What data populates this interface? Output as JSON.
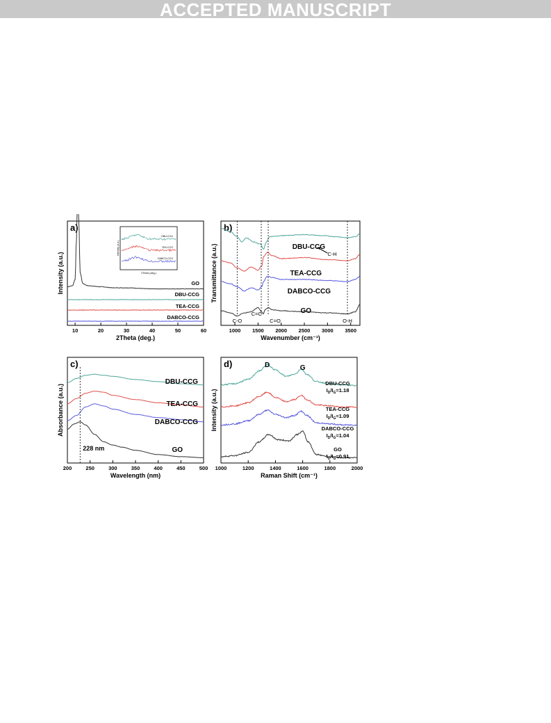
{
  "header": {
    "banner": "ACCEPTED MANUSCRIPT"
  },
  "colors": {
    "dbu": "#4fa89c",
    "tea": "#e0504a",
    "dabco": "#5a5ae0",
    "go": "#333333",
    "banner_bg": "#c9c9c9"
  },
  "chart_data": [
    {
      "type": "line",
      "panel_label": "a)",
      "xlabel": "2Theta (deg.)",
      "ylabel": "Intensity (a.u.)",
      "xlim": [
        7,
        60
      ],
      "xticks": [
        10,
        20,
        30,
        40,
        50,
        60
      ],
      "series": [
        {
          "name": "GO",
          "label": "GO",
          "x": [
            7,
            9,
            10,
            10.5,
            11,
            11.4,
            12,
            13,
            15,
            20,
            25,
            30,
            40,
            50,
            60
          ],
          "values": [
            0.05,
            0.06,
            0.12,
            0.5,
            0.97,
            0.7,
            0.18,
            0.08,
            0.06,
            0.05,
            0.04,
            0.04,
            0.03,
            0.03,
            0.03
          ]
        },
        {
          "name": "DBU-CCG",
          "label": "DBU-CCG",
          "x": [
            7,
            60
          ],
          "values": [
            0.02,
            0.02
          ]
        },
        {
          "name": "TEA-CCG",
          "label": "TEA-CCG",
          "x": [
            7,
            60
          ],
          "values": [
            0.02,
            0.02
          ]
        },
        {
          "name": "DABCO-CCG",
          "label": "DABCO-CCG",
          "x": [
            7,
            60
          ],
          "values": [
            0.02,
            0.02
          ]
        }
      ],
      "inset": {
        "xlabel": "2Theta (deg.)",
        "ylabel": "Intensity (a.u.)",
        "labels": [
          "DBU-CCG",
          "TEA-CCG",
          "DABCO-CCG"
        ]
      }
    },
    {
      "type": "line",
      "panel_label": "b)",
      "xlabel": "Wavenumber (cm⁻¹)",
      "ylabel": "Transmittance (a.u.)",
      "xlim": [
        700,
        3700
      ],
      "xticks": [
        1000,
        1500,
        2000,
        2500,
        3000,
        3500
      ],
      "series": [
        {
          "name": "DBU-CCG",
          "label": "DBU-CCG",
          "x": [
            700,
            900,
            1050,
            1150,
            1250,
            1400,
            1550,
            1620,
            1680,
            1750,
            2000,
            2500,
            2900,
            3200,
            3430,
            3600,
            3700
          ],
          "values": [
            0.93,
            0.9,
            0.85,
            0.8,
            0.84,
            0.8,
            0.78,
            0.73,
            0.8,
            0.85,
            0.86,
            0.87,
            0.86,
            0.85,
            0.84,
            0.85,
            0.88
          ]
        },
        {
          "name": "TEA-CCG",
          "label": "TEA-CCG",
          "x": [
            700,
            900,
            1050,
            1200,
            1350,
            1500,
            1580,
            1620,
            1700,
            1800,
            2000,
            2500,
            3000,
            3430,
            3600,
            3700
          ],
          "values": [
            0.62,
            0.6,
            0.55,
            0.52,
            0.56,
            0.53,
            0.57,
            0.66,
            0.7,
            0.67,
            0.64,
            0.65,
            0.63,
            0.62,
            0.64,
            0.68
          ]
        },
        {
          "name": "DABCO-CCG",
          "label": "DABCO-CCG",
          "x": [
            700,
            900,
            1050,
            1200,
            1350,
            1500,
            1580,
            1620,
            1700,
            1800,
            2000,
            2500,
            3000,
            3430,
            3600,
            3700
          ],
          "values": [
            0.42,
            0.4,
            0.37,
            0.33,
            0.36,
            0.34,
            0.37,
            0.42,
            0.47,
            0.46,
            0.44,
            0.44,
            0.43,
            0.42,
            0.44,
            0.47
          ]
        },
        {
          "name": "GO",
          "label": "GO",
          "x": [
            700,
            900,
            1050,
            1200,
            1350,
            1500,
            1580,
            1620,
            1650,
            1720,
            1800,
            2000,
            2500,
            3000,
            3430,
            3600,
            3700
          ],
          "values": [
            0.14,
            0.12,
            0.09,
            0.12,
            0.13,
            0.17,
            0.13,
            0.11,
            0.15,
            0.17,
            0.15,
            0.14,
            0.13,
            0.12,
            0.11,
            0.13,
            0.2
          ]
        }
      ],
      "annotations": [
        "C-O",
        "C=C",
        "C=O",
        "O-H",
        "C-H"
      ],
      "guide_lines_x": [
        1050,
        1570,
        1720,
        3430
      ]
    },
    {
      "type": "line",
      "panel_label": "c)",
      "xlabel": "Wavelength (nm)",
      "ylabel": "Absorbance (a.u.)",
      "xlim": [
        200,
        500
      ],
      "xticks": [
        200,
        250,
        300,
        350,
        400,
        450,
        500
      ],
      "series": [
        {
          "name": "DBU-CCG",
          "label": "DBU-CCG",
          "x": [
            200,
            220,
            240,
            260,
            280,
            300,
            350,
            400,
            450,
            500
          ],
          "values": [
            0.76,
            0.8,
            0.83,
            0.84,
            0.83,
            0.82,
            0.79,
            0.77,
            0.75,
            0.74
          ]
        },
        {
          "name": "TEA-CCG",
          "label": "TEA-CCG",
          "x": [
            200,
            220,
            240,
            260,
            280,
            300,
            350,
            400,
            450,
            500
          ],
          "values": [
            0.56,
            0.61,
            0.66,
            0.68,
            0.67,
            0.64,
            0.6,
            0.57,
            0.55,
            0.53
          ]
        },
        {
          "name": "DABCO-CCG",
          "label": "DABCO-CCG",
          "x": [
            200,
            220,
            240,
            260,
            280,
            300,
            350,
            400,
            450,
            500
          ],
          "values": [
            0.4,
            0.45,
            0.53,
            0.56,
            0.54,
            0.51,
            0.46,
            0.43,
            0.41,
            0.39
          ]
        },
        {
          "name": "GO",
          "label": "GO",
          "x": [
            200,
            215,
            228,
            240,
            260,
            280,
            300,
            320,
            350,
            400,
            450,
            500
          ],
          "values": [
            0.32,
            0.37,
            0.39,
            0.36,
            0.27,
            0.2,
            0.17,
            0.15,
            0.12,
            0.08,
            0.06,
            0.05
          ]
        }
      ],
      "annotation": "228 nm",
      "guide_line_x": 228
    },
    {
      "type": "line",
      "panel_label": "d)",
      "xlabel": "Raman Shift (cm⁻¹)",
      "ylabel": "Intensity (a.u.)",
      "xlim": [
        1000,
        2000
      ],
      "xticks": [
        1000,
        1200,
        1400,
        1600,
        1800,
        2000
      ],
      "peak_labels": [
        "D",
        "G"
      ],
      "series": [
        {
          "name": "DBU-CCG",
          "label": "DBU-CCG",
          "ratio": "1.18",
          "x": [
            1000,
            1100,
            1200,
            1280,
            1340,
            1400,
            1480,
            1540,
            1590,
            1630,
            1700,
            1800,
            1900,
            2000
          ],
          "values": [
            0.74,
            0.75,
            0.79,
            0.87,
            0.93,
            0.88,
            0.82,
            0.84,
            0.89,
            0.84,
            0.77,
            0.75,
            0.74,
            0.73
          ]
        },
        {
          "name": "TEA-CCG",
          "label": "TEA-CCG",
          "ratio": "1.09",
          "x": [
            1000,
            1100,
            1200,
            1280,
            1340,
            1400,
            1480,
            1540,
            1590,
            1630,
            1700,
            1800,
            1900,
            2000
          ],
          "values": [
            0.53,
            0.54,
            0.57,
            0.63,
            0.67,
            0.62,
            0.58,
            0.6,
            0.64,
            0.6,
            0.55,
            0.54,
            0.53,
            0.53
          ]
        },
        {
          "name": "DABCO-CCG",
          "label": "DABCO-CCG",
          "ratio": "1.04",
          "x": [
            1000,
            1100,
            1200,
            1280,
            1340,
            1400,
            1480,
            1540,
            1590,
            1630,
            1700,
            1800,
            1900,
            2000
          ],
          "values": [
            0.36,
            0.37,
            0.4,
            0.46,
            0.5,
            0.46,
            0.43,
            0.45,
            0.49,
            0.45,
            0.38,
            0.37,
            0.36,
            0.36
          ]
        },
        {
          "name": "GO",
          "label": "GO",
          "ratio": "0.91",
          "x": [
            1000,
            1100,
            1200,
            1280,
            1350,
            1420,
            1500,
            1560,
            1600,
            1640,
            1700,
            1800,
            1900,
            2000
          ],
          "values": [
            0.06,
            0.07,
            0.1,
            0.2,
            0.27,
            0.22,
            0.21,
            0.27,
            0.3,
            0.2,
            0.08,
            0.06,
            0.05,
            0.05
          ]
        }
      ],
      "ratio_label": "I",
      "ratio_sub_d": "D",
      "ratio_sub_g": "G"
    }
  ]
}
